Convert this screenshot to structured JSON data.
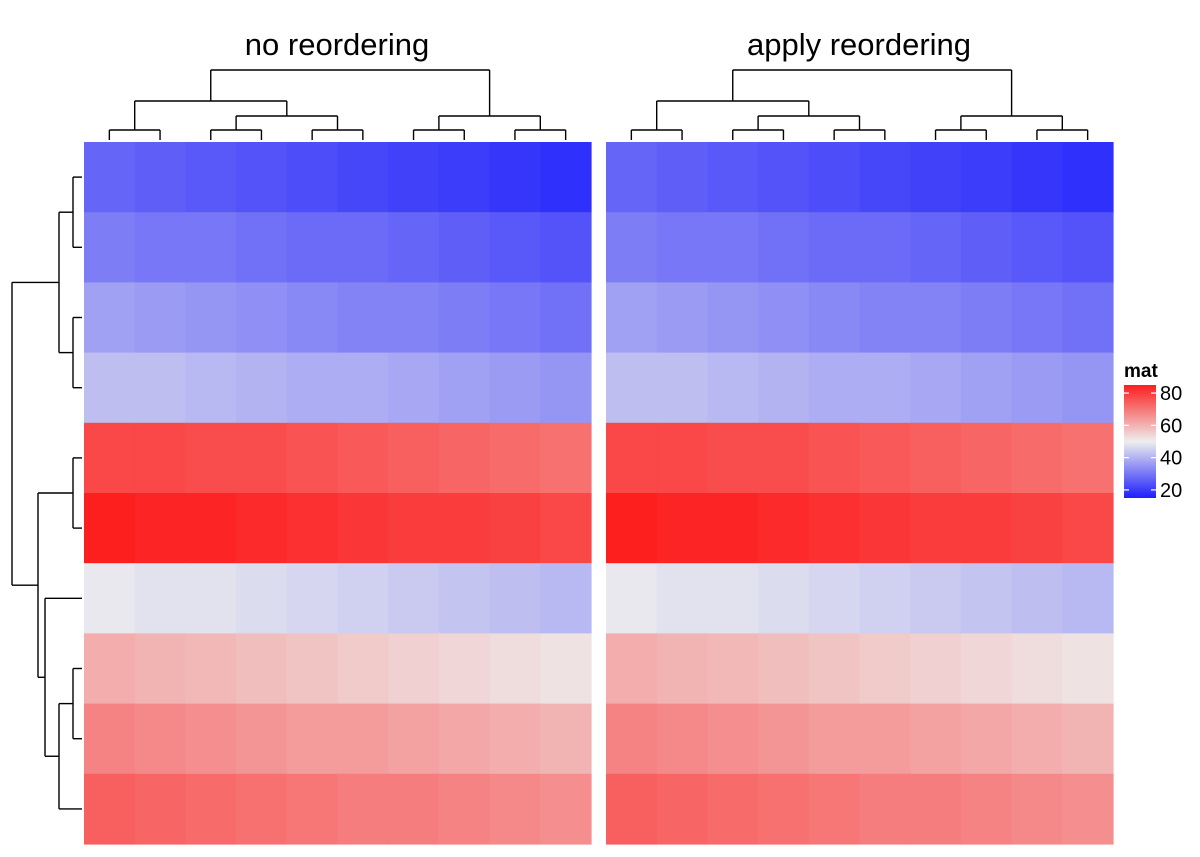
{
  "chart_data": {
    "type": "heatmap",
    "panels": [
      {
        "title": "no reordering",
        "rows": [
          [
            27,
            26,
            25,
            24,
            23,
            22,
            21,
            20,
            19,
            18
          ],
          [
            31,
            30,
            30,
            29,
            28,
            28,
            27,
            26,
            25,
            24
          ],
          [
            37,
            36,
            35,
            34,
            33,
            32,
            32,
            31,
            30,
            29
          ],
          [
            42,
            42,
            41,
            40,
            39,
            39,
            38,
            37,
            36,
            35
          ],
          [
            78,
            78,
            77,
            77,
            76,
            75,
            74,
            73,
            72,
            71
          ],
          [
            85,
            84,
            84,
            83,
            82,
            81,
            80,
            80,
            79,
            78
          ],
          [
            49,
            48,
            48,
            47,
            46,
            45,
            44,
            43,
            42,
            41
          ],
          [
            61,
            60,
            59,
            58,
            57,
            56,
            55,
            54,
            53,
            52
          ],
          [
            68,
            67,
            66,
            65,
            64,
            64,
            63,
            62,
            61,
            60
          ],
          [
            74,
            73,
            72,
            71,
            70,
            69,
            69,
            68,
            67,
            66
          ]
        ]
      },
      {
        "title": "apply reordering",
        "rows": [
          [
            27,
            26,
            25,
            24,
            23,
            22,
            21,
            20,
            19,
            18
          ],
          [
            31,
            30,
            30,
            29,
            28,
            28,
            27,
            26,
            25,
            24
          ],
          [
            37,
            36,
            35,
            34,
            33,
            32,
            32,
            31,
            30,
            29
          ],
          [
            42,
            42,
            41,
            40,
            39,
            39,
            38,
            37,
            36,
            35
          ],
          [
            78,
            78,
            77,
            77,
            76,
            75,
            74,
            73,
            72,
            71
          ],
          [
            85,
            84,
            84,
            83,
            82,
            81,
            80,
            80,
            79,
            78
          ],
          [
            49,
            48,
            48,
            47,
            46,
            45,
            44,
            43,
            42,
            41
          ],
          [
            61,
            60,
            59,
            58,
            57,
            56,
            55,
            54,
            53,
            52
          ],
          [
            68,
            67,
            66,
            65,
            64,
            64,
            63,
            62,
            61,
            60
          ],
          [
            74,
            73,
            72,
            71,
            70,
            69,
            69,
            68,
            67,
            66
          ]
        ]
      }
    ],
    "legend": {
      "title": "mat",
      "ticks": [
        80,
        60,
        40,
        20
      ],
      "color_scale": [
        {
          "value": 10,
          "color": "#0000ff"
        },
        {
          "value": 50,
          "color": "#eeeeee"
        },
        {
          "value": 90,
          "color": "#ff0000"
        }
      ]
    },
    "column_dendrogram": true,
    "row_dendrogram": true
  }
}
